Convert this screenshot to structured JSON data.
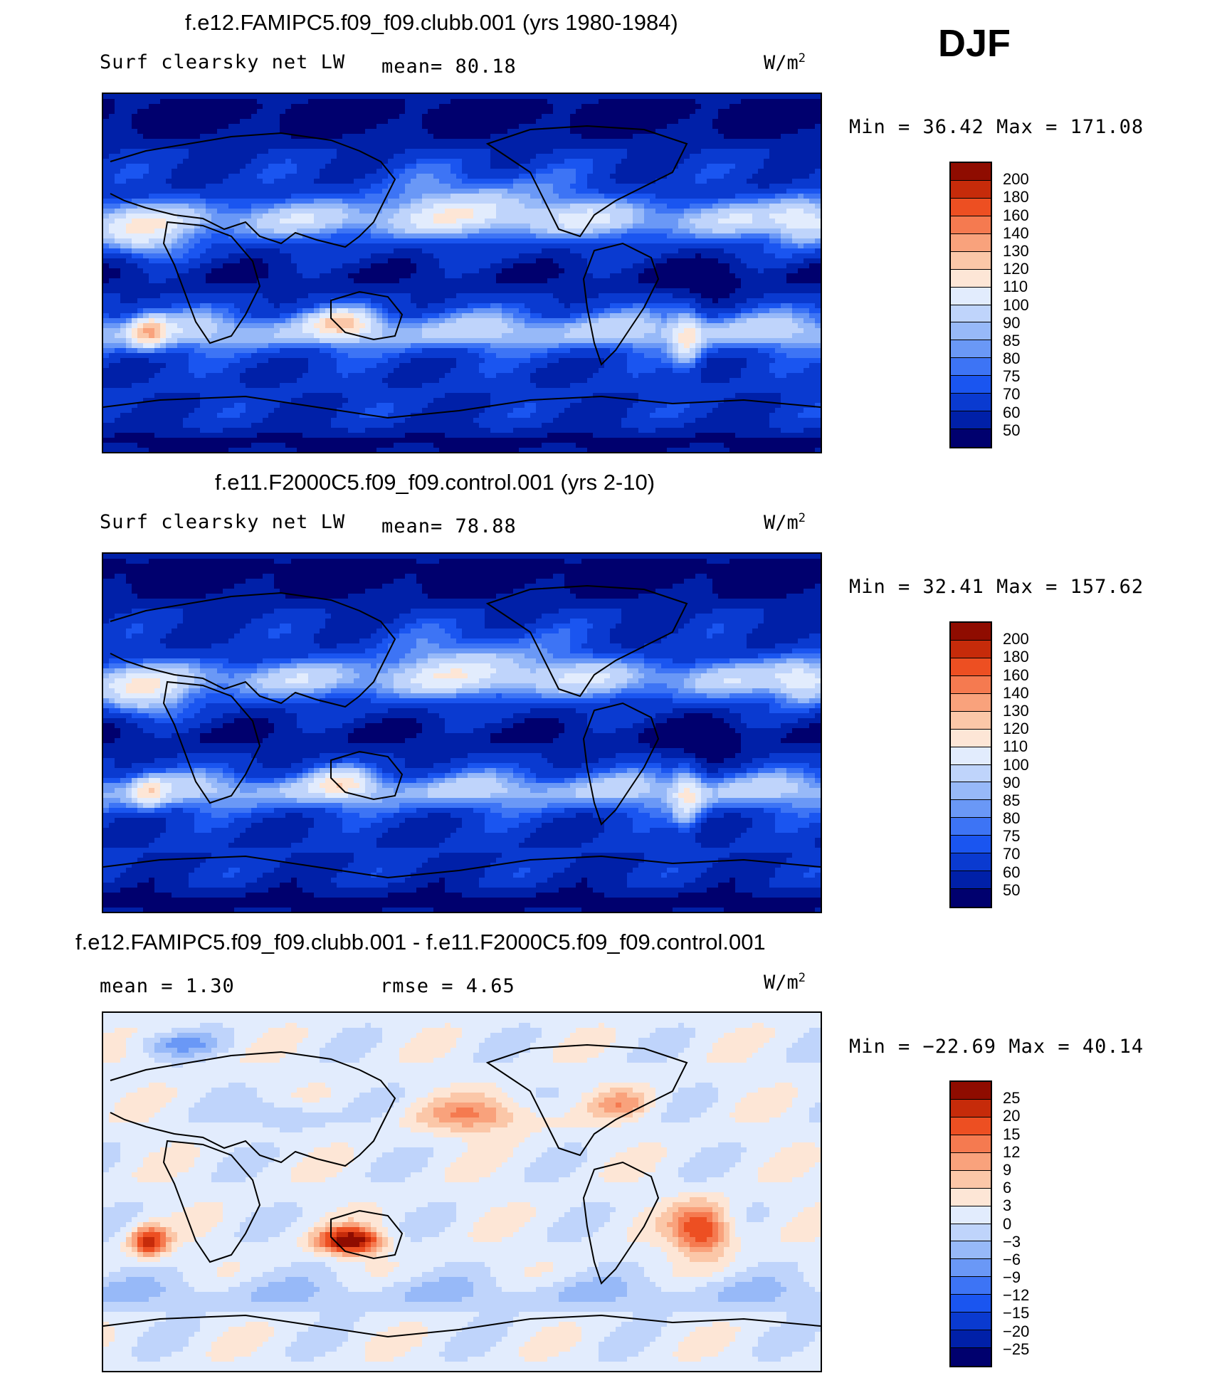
{
  "season_label": "DJF",
  "panels": [
    {
      "title": "f.e12.FAMIPC5.f09_f09.clubb.001 (yrs 1980-1984)",
      "left_label": "Surf  clearsky  net  LW",
      "stat1": "mean=   80.18",
      "stat2": "",
      "units_base": "W/m",
      "units_exp": "2",
      "minmax": "Min  =    36.42  Max  =  171.08"
    },
    {
      "title": "f.e11.F2000C5.f09_f09.control.001 (yrs 2-10)",
      "left_label": "Surf  clearsky  net  LW",
      "stat1": "mean=   78.88",
      "stat2": "",
      "units_base": "W/m",
      "units_exp": "2",
      "minmax": "Min  =    32.41  Max  =  157.62"
    },
    {
      "title": "f.e12.FAMIPC5.f09_f09.clubb.001 - f.e11.F2000C5.f09_f09.control.001",
      "left_label": "mean  =     1.30",
      "stat1": "rmse  =     4.65",
      "stat2": "",
      "units_base": "W/m",
      "units_exp": "2",
      "minmax": "Min  = −22.69  Max  =   40.14"
    }
  ],
  "chart_data": [
    {
      "type": "heatmap",
      "title": "f.e12.FAMIPC5.f09_f09.clubb.001 (yrs 1980-1984)",
      "variable": "Surf clearsky net LW",
      "units": "W/m2",
      "season": "DJF",
      "mean": 80.18,
      "min": 36.42,
      "max": 171.08,
      "contour_levels": [
        50,
        60,
        70,
        75,
        80,
        85,
        90,
        100,
        110,
        120,
        130,
        140,
        160,
        180,
        200
      ],
      "colors": [
        "#00006e",
        "#0020a8",
        "#0a3ad0",
        "#1a55f0",
        "#3d74f5",
        "#6a98f6",
        "#97b9f8",
        "#bfd4fb",
        "#e2ecfd",
        "#fde6d6",
        "#fbc7a8",
        "#f9a27c",
        "#f57a50",
        "#ed4f22",
        "#c62b0a",
        "#8f0c00"
      ]
    },
    {
      "type": "heatmap",
      "title": "f.e11.F2000C5.f09_f09.control.001 (yrs 2-10)",
      "variable": "Surf clearsky net LW",
      "units": "W/m2",
      "season": "DJF",
      "mean": 78.88,
      "min": 32.41,
      "max": 157.62,
      "contour_levels": [
        50,
        60,
        70,
        75,
        80,
        85,
        90,
        100,
        110,
        120,
        130,
        140,
        160,
        180,
        200
      ],
      "colors": [
        "#00006e",
        "#0020a8",
        "#0a3ad0",
        "#1a55f0",
        "#3d74f5",
        "#6a98f6",
        "#97b9f8",
        "#bfd4fb",
        "#e2ecfd",
        "#fde6d6",
        "#fbc7a8",
        "#f9a27c",
        "#f57a50",
        "#ed4f22",
        "#c62b0a",
        "#8f0c00"
      ]
    },
    {
      "type": "heatmap",
      "title": "f.e12.FAMIPC5.f09_f09.clubb.001 - f.e11.F2000C5.f09_f09.control.001",
      "units": "W/m2",
      "season": "DJF",
      "mean": 1.3,
      "rmse": 4.65,
      "min": -22.69,
      "max": 40.14,
      "contour_levels": [
        -25,
        -20,
        -15,
        -12,
        -9,
        -6,
        -3,
        0,
        3,
        6,
        9,
        12,
        15,
        20,
        25
      ],
      "colors": [
        "#00006e",
        "#0020a8",
        "#0a3ad0",
        "#1a55f0",
        "#3d74f5",
        "#6a98f6",
        "#97b9f8",
        "#bfd4fb",
        "#e2ecfd",
        "#fde6d6",
        "#fbc7a8",
        "#f9a27c",
        "#f57a50",
        "#ed4f22",
        "#c62b0a",
        "#8f0c00"
      ]
    }
  ],
  "colorbar_ticks": [
    [
      "200",
      "180",
      "160",
      "140",
      "130",
      "120",
      "110",
      "100",
      "90",
      "85",
      "80",
      "75",
      "70",
      "60",
      "50"
    ],
    [
      "200",
      "180",
      "160",
      "140",
      "130",
      "120",
      "110",
      "100",
      "90",
      "85",
      "80",
      "75",
      "70",
      "60",
      "50"
    ],
    [
      "25",
      "20",
      "15",
      "12",
      "9",
      "6",
      "3",
      "0",
      "−3",
      "−6",
      "−9",
      "−12",
      "−15",
      "−20",
      "−25"
    ]
  ]
}
